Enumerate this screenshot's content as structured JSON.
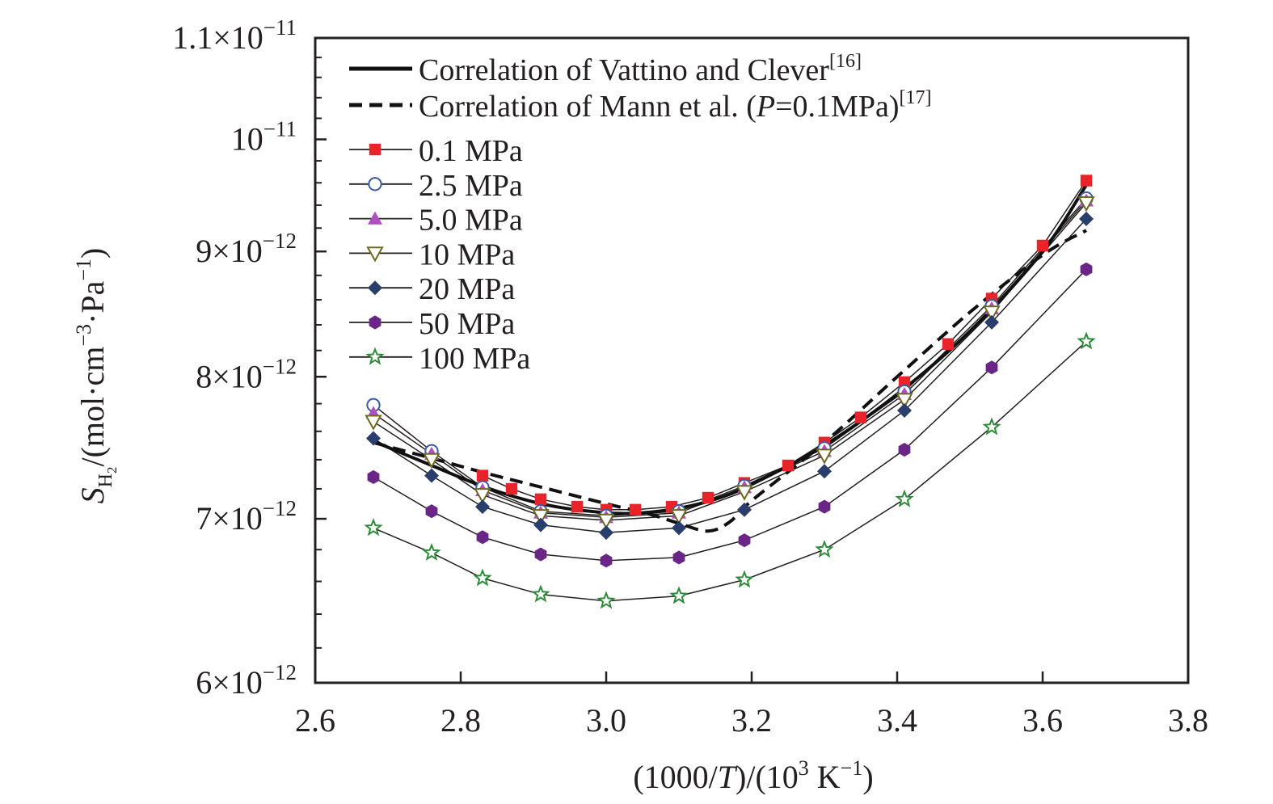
{
  "chart_data": {
    "type": "line",
    "title": "",
    "xlabel": {
      "pre": "(1000/",
      "var": "T",
      "mid": ")/(10",
      "sup": "3",
      "post": " K",
      "unit_sup": "−1",
      "close": ")"
    },
    "ylabel": {
      "var": "S",
      "sub": "H",
      "subsub": "2",
      "unit": "/(mol·cm",
      "sup1": "−3",
      "mid": "·Pa",
      "sup2": "−1",
      "close": ")"
    },
    "xlim": [
      2.6,
      3.8
    ],
    "ylim": [
      6e-12,
      1.1e-11
    ],
    "y_scale": "log",
    "grid": false,
    "legend_position": "top-left",
    "x_ticks": [
      {
        "value": 2.6,
        "label": "2.6"
      },
      {
        "value": 2.8,
        "label": "2.8"
      },
      {
        "value": 3.0,
        "label": "3.0"
      },
      {
        "value": 3.2,
        "label": "3.2"
      },
      {
        "value": 3.4,
        "label": "3.4"
      },
      {
        "value": 3.6,
        "label": "3.6"
      },
      {
        "value": 3.8,
        "label": "3.8"
      }
    ],
    "y_ticks": [
      {
        "value": 6e-12,
        "mant": "6×10",
        "exp": "−12"
      },
      {
        "value": 7e-12,
        "mant": "7×10",
        "exp": "−12"
      },
      {
        "value": 8e-12,
        "mant": "8×10",
        "exp": "−12"
      },
      {
        "value": 9e-12,
        "mant": "9×10",
        "exp": "−12"
      },
      {
        "value": 1e-11,
        "mant": "10",
        "exp": "−11"
      },
      {
        "value": 1.1e-11,
        "mant": "1.1×10",
        "exp": "−11"
      }
    ],
    "correlations": [
      {
        "name": "Correlation of Vattino and Clever",
        "ref": "[16]",
        "style": "solid",
        "x": [
          2.68,
          2.76,
          2.84,
          2.92,
          3.0,
          3.05,
          3.1,
          3.15,
          3.2,
          3.3,
          3.4,
          3.5,
          3.6,
          3.66
        ],
        "values": [
          7.53e-12,
          7.36e-12,
          7.2e-12,
          7.09e-12,
          7.04e-12,
          7.04e-12,
          7.07e-12,
          7.13e-12,
          7.23e-12,
          7.5e-12,
          7.87e-12,
          8.35e-12,
          9e-12,
          9.58e-12
        ]
      },
      {
        "name_pre": "Correlation of Mann et al. (",
        "name_var": "P",
        "name_post": "=0.1MPa)",
        "ref": "[17]",
        "style": "dashed",
        "x": [
          2.68,
          2.76,
          2.84,
          2.92,
          3.0,
          3.06,
          3.1,
          3.14,
          3.17,
          3.2,
          3.3,
          3.4,
          3.5,
          3.6,
          3.66
        ],
        "values": [
          7.52e-12,
          7.41e-12,
          7.3e-12,
          7.2e-12,
          7.1e-12,
          7.03e-12,
          6.97e-12,
          6.92e-12,
          6.98e-12,
          7.12e-12,
          7.52e-12,
          8e-12,
          8.5e-12,
          8.97e-12,
          9.18e-12
        ]
      }
    ],
    "series": [
      {
        "name": "0.1 MPa",
        "marker": "square",
        "color": "#e8232a",
        "x": [
          2.83,
          2.87,
          2.91,
          2.96,
          3.0,
          3.04,
          3.09,
          3.14,
          3.19,
          3.25,
          3.3,
          3.35,
          3.41,
          3.47,
          3.53,
          3.6,
          3.66
        ],
        "values": [
          7.29e-12,
          7.2e-12,
          7.13e-12,
          7.08e-12,
          7.06e-12,
          7.06e-12,
          7.08e-12,
          7.14e-12,
          7.24e-12,
          7.36e-12,
          7.52e-12,
          7.7e-12,
          7.96e-12,
          8.25e-12,
          8.61e-12,
          9.05e-12,
          9.62e-12
        ]
      },
      {
        "name": "2.5 MPa",
        "marker": "circle-open",
        "color": "#3a5aa8",
        "x": [
          2.68,
          2.76,
          2.83,
          2.91,
          3.0,
          3.1,
          3.19,
          3.3,
          3.41,
          3.53,
          3.66
        ],
        "values": [
          7.79e-12,
          7.46e-12,
          7.21e-12,
          7.05e-12,
          7.02e-12,
          7.05e-12,
          7.22e-12,
          7.48e-12,
          7.89e-12,
          8.55e-12,
          9.46e-12
        ]
      },
      {
        "name": "5.0 MPa",
        "marker": "triangle-up",
        "color": "#b04fc0",
        "x": [
          2.68,
          2.76,
          2.83,
          2.91,
          3.0,
          3.1,
          3.19,
          3.3,
          3.41,
          3.53,
          3.66
        ],
        "values": [
          7.73e-12,
          7.44e-12,
          7.19e-12,
          7.04e-12,
          7.01e-12,
          7.04e-12,
          7.21e-12,
          7.46e-12,
          7.87e-12,
          8.53e-12,
          9.44e-12
        ]
      },
      {
        "name": "10 MPa",
        "marker": "triangle-down-open",
        "color": "#6b6a1e",
        "x": [
          2.68,
          2.76,
          2.83,
          2.91,
          3.0,
          3.1,
          3.19,
          3.3,
          3.41,
          3.53,
          3.66
        ],
        "values": [
          7.67e-12,
          7.4e-12,
          7.16e-12,
          7.02e-12,
          6.99e-12,
          7.02e-12,
          7.18e-12,
          7.43e-12,
          7.83e-12,
          8.5e-12,
          9.42e-12
        ]
      },
      {
        "name": "20 MPa",
        "marker": "diamond",
        "color": "#2a3e6e",
        "x": [
          2.68,
          2.76,
          2.83,
          2.91,
          3.0,
          3.1,
          3.19,
          3.3,
          3.41,
          3.53,
          3.66
        ],
        "values": [
          7.55e-12,
          7.29e-12,
          7.08e-12,
          6.96e-12,
          6.91e-12,
          6.94e-12,
          7.06e-12,
          7.32e-12,
          7.75e-12,
          8.42e-12,
          9.28e-12
        ]
      },
      {
        "name": "50 MPa",
        "marker": "hexagon",
        "color": "#6a2686",
        "x": [
          2.68,
          2.76,
          2.83,
          2.91,
          3.0,
          3.1,
          3.19,
          3.3,
          3.41,
          3.53,
          3.66
        ],
        "values": [
          7.28e-12,
          7.05e-12,
          6.88e-12,
          6.77e-12,
          6.73e-12,
          6.75e-12,
          6.86e-12,
          7.08e-12,
          7.47e-12,
          8.07e-12,
          8.85e-12
        ]
      },
      {
        "name": "100 MPa",
        "marker": "star-open",
        "color": "#2e8b3a",
        "x": [
          2.68,
          2.76,
          2.83,
          2.91,
          3.0,
          3.1,
          3.19,
          3.3,
          3.41,
          3.53,
          3.66
        ],
        "values": [
          6.94e-12,
          6.78e-12,
          6.62e-12,
          6.52e-12,
          6.48e-12,
          6.51e-12,
          6.61e-12,
          6.8e-12,
          7.13e-12,
          7.63e-12,
          8.27e-12
        ]
      }
    ]
  }
}
